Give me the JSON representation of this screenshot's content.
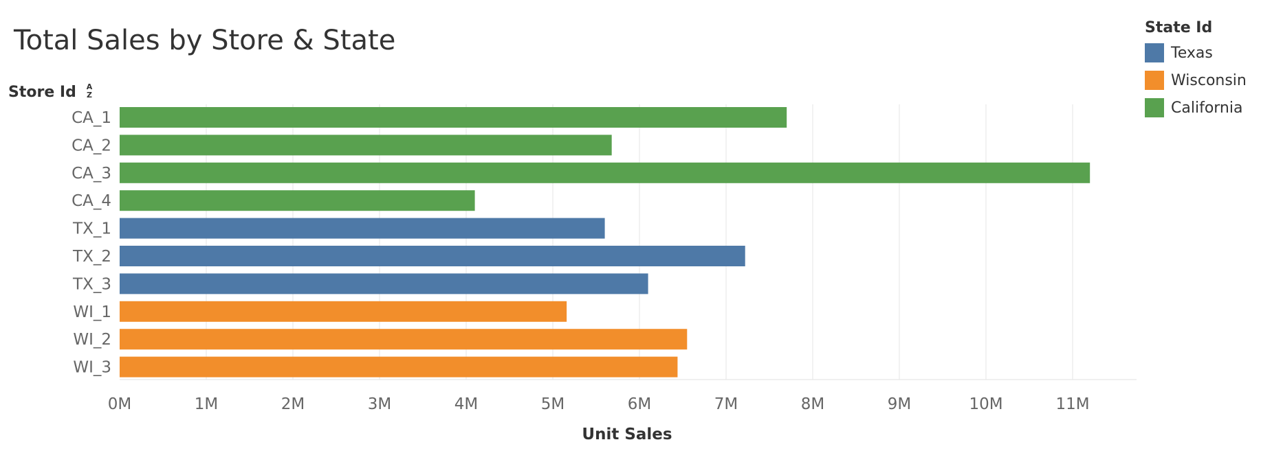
{
  "chart_data": {
    "type": "bar",
    "orientation": "horizontal",
    "title": "Total Sales by Store & State",
    "row_header": "Store Id",
    "xlabel": "Unit Sales",
    "ylabel": "",
    "xlim": [
      0,
      11.75
    ],
    "x_ticks": [
      "0M",
      "1M",
      "2M",
      "3M",
      "4M",
      "5M",
      "6M",
      "7M",
      "8M",
      "9M",
      "10M",
      "11M"
    ],
    "grid": true,
    "legend_position": "top-right",
    "legend": {
      "title": "State Id",
      "items": [
        {
          "name": "Texas",
          "color": "#4e79a7"
        },
        {
          "name": "Wisconsin",
          "color": "#f28e2b"
        },
        {
          "name": "California",
          "color": "#59a14f"
        }
      ]
    },
    "bars": [
      {
        "category": "CA_1",
        "value": 7.7,
        "state": "California"
      },
      {
        "category": "CA_2",
        "value": 5.68,
        "state": "California"
      },
      {
        "category": "CA_3",
        "value": 11.2,
        "state": "California"
      },
      {
        "category": "CA_4",
        "value": 4.1,
        "state": "California"
      },
      {
        "category": "TX_1",
        "value": 5.6,
        "state": "Texas"
      },
      {
        "category": "TX_2",
        "value": 7.22,
        "state": "Texas"
      },
      {
        "category": "TX_3",
        "value": 6.1,
        "state": "Texas"
      },
      {
        "category": "WI_1",
        "value": 5.16,
        "state": "Wisconsin"
      },
      {
        "category": "WI_2",
        "value": 6.55,
        "state": "Wisconsin"
      },
      {
        "category": "WI_3",
        "value": 6.44,
        "state": "Wisconsin"
      }
    ]
  }
}
